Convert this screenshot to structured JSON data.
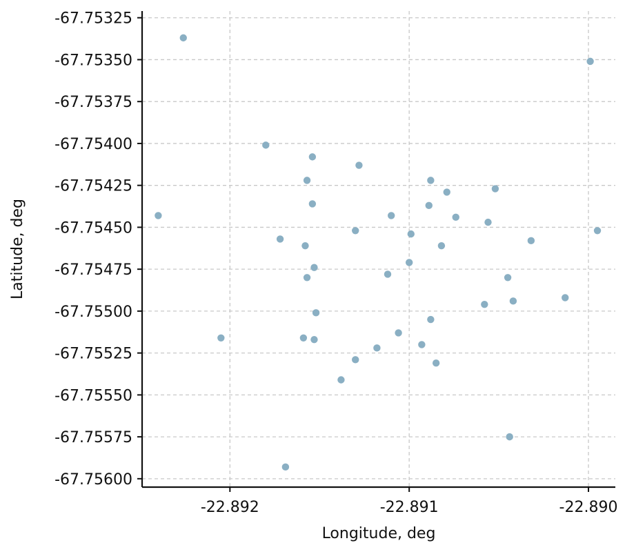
{
  "chart_data": {
    "type": "scatter",
    "xlabel": "Longitude, deg",
    "ylabel": "Latitude, deg",
    "xlim": [
      -22.89249,
      -22.88985
    ],
    "ylim": [
      -67.75605,
      -67.75321
    ],
    "x_ticks": [
      -22.892,
      -22.891,
      -22.89
    ],
    "x_tick_labels": [
      "-22.892",
      "-22.891",
      "-22.890"
    ],
    "y_ticks": [
      -67.75325,
      -67.7535,
      -67.75375,
      -67.754,
      -67.75425,
      -67.7545,
      -67.75475,
      -67.755,
      -67.75525,
      -67.7555,
      -67.75575,
      -67.756
    ],
    "y_tick_labels": [
      "-67.75325",
      "-67.75350",
      "-67.75375",
      "-67.75400",
      "-67.75425",
      "-67.75450",
      "-67.75475",
      "-67.75500",
      "-67.75525",
      "-67.75550",
      "-67.75575",
      "-67.75600"
    ],
    "grid": true,
    "point_color": "#8aafc3",
    "series": [
      {
        "x": [
          -22.89226,
          -22.88999,
          -22.8918,
          -22.89154,
          -22.89128,
          -22.89157,
          -22.89088,
          -22.89079,
          -22.89052,
          -22.89154,
          -22.89089,
          -22.8924,
          -22.8911,
          -22.89074,
          -22.8913,
          -22.89056,
          -22.89099,
          -22.89172,
          -22.89158,
          -22.89032,
          -22.88995,
          -22.89082,
          -22.891,
          -22.89153,
          -22.89112,
          -22.89157,
          -22.89045,
          -22.89058,
          -22.89042,
          -22.89013,
          -22.89152,
          -22.89088,
          -22.89205,
          -22.89106,
          -22.89159,
          -22.89153,
          -22.89093,
          -22.89118,
          -22.8913,
          -22.89085,
          -22.89138,
          -22.89044,
          -22.89169
        ],
        "y": [
          -67.75337,
          -67.75351,
          -67.75401,
          -67.75408,
          -67.75413,
          -67.75422,
          -67.75422,
          -67.75429,
          -67.75427,
          -67.75436,
          -67.75437,
          -67.75443,
          -67.75443,
          -67.75444,
          -67.75452,
          -67.75447,
          -67.75454,
          -67.75457,
          -67.75461,
          -67.75458,
          -67.75452,
          -67.75461,
          -67.75471,
          -67.75474,
          -67.75478,
          -67.7548,
          -67.7548,
          -67.75496,
          -67.75494,
          -67.75492,
          -67.75501,
          -67.75505,
          -67.75516,
          -67.75513,
          -67.75516,
          -67.75517,
          -67.7552,
          -67.75522,
          -67.75529,
          -67.75531,
          -67.75541,
          -67.75575,
          -67.75593
        ]
      }
    ]
  }
}
